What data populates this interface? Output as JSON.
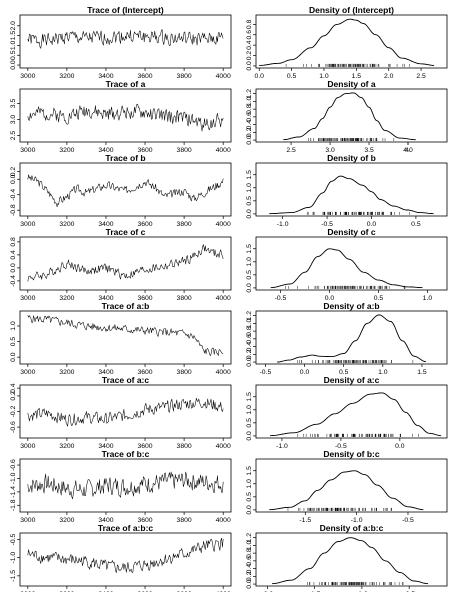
{
  "chart_data": [
    {
      "type": "line",
      "title": "Trace of (Intercept)",
      "x_ticks": [
        "3000",
        "3200",
        "3400",
        "3600",
        "3800",
        "4000"
      ],
      "y_ticks": [
        "0.0",
        "0.5",
        "1.0",
        "1.5",
        "2.0"
      ],
      "x_range": [
        3000,
        4000
      ],
      "ylim": [
        -0.15,
        2.55
      ],
      "x_values": [
        3000,
        3100,
        3200,
        3300,
        3400,
        3500,
        3600,
        3700,
        3800,
        3900,
        4000
      ],
      "y_values": [
        1.3,
        1.25,
        1.45,
        1.35,
        1.4,
        1.5,
        1.45,
        1.4,
        1.35,
        1.3,
        1.4
      ],
      "noise": 0.45,
      "seed": 1
    },
    {
      "type": "line",
      "title": "Density of (Intercept)",
      "x_ticks": [
        "0.0",
        "0.5",
        "1.0",
        "1.5",
        "2.0",
        "2.5"
      ],
      "y_ticks": [
        "0.0",
        "0.2",
        "0.4",
        "0.6",
        "0.8"
      ],
      "xlim": [
        -0.05,
        2.9
      ],
      "ylim": [
        -0.04,
        0.98
      ],
      "x_values": [
        0,
        0.3,
        0.5,
        0.8,
        1.0,
        1.2,
        1.4,
        1.5,
        1.6,
        1.8,
        2.0,
        2.2,
        2.5,
        2.7
      ],
      "y_values": [
        0.01,
        0.05,
        0.12,
        0.35,
        0.58,
        0.8,
        0.9,
        0.88,
        0.82,
        0.6,
        0.35,
        0.15,
        0.04,
        0.01
      ],
      "rug_range": [
        0.3,
        2.6
      ]
    },
    {
      "type": "line",
      "title": "Trace of a",
      "x_ticks": [
        "3000",
        "3200",
        "3400",
        "3600",
        "3800",
        "4000"
      ],
      "y_ticks": [
        "2.5",
        "3.0",
        "3.5"
      ],
      "x_range": [
        3000,
        4000
      ],
      "ylim": [
        2.3,
        3.95
      ],
      "x_values": [
        3000,
        3100,
        3200,
        3300,
        3400,
        3500,
        3600,
        3700,
        3800,
        3900,
        4000
      ],
      "y_values": [
        3.15,
        3.2,
        3.1,
        3.3,
        3.15,
        3.25,
        3.2,
        3.1,
        3.05,
        2.85,
        3.0
      ],
      "noise": 0.28,
      "seed": 2
    },
    {
      "type": "line",
      "title": "Density of a",
      "x_ticks": [
        "2.5",
        "3.0",
        "3.5",
        "4.0",
        "4."
      ],
      "y_ticks": [
        "0.0",
        "0.2",
        "0.4",
        "0.6",
        "0.8",
        "1.0",
        "1.2"
      ],
      "xlim": [
        2.05,
        4.5
      ],
      "ylim": [
        -0.05,
        1.32
      ],
      "x_values": [
        2.4,
        2.6,
        2.8,
        2.9,
        3.0,
        3.1,
        3.2,
        3.3,
        3.4,
        3.5,
        3.6,
        3.7,
        3.9,
        4.1
      ],
      "y_values": [
        0.01,
        0.08,
        0.3,
        0.55,
        0.85,
        1.1,
        1.2,
        1.22,
        1.1,
        0.85,
        0.5,
        0.25,
        0.05,
        0.01
      ],
      "rug_range": [
        2.5,
        3.9
      ]
    },
    {
      "type": "line",
      "title": "Trace of b",
      "x_ticks": [
        "3000",
        "3200",
        "3400",
        "3600",
        "3800",
        "4000"
      ],
      "y_ticks": [
        "-0.8",
        "-0.4",
        "0.0",
        "0.2"
      ],
      "x_range": [
        3000,
        4000
      ],
      "ylim": [
        -0.95,
        0.42
      ],
      "x_values": [
        3000,
        3050,
        3100,
        3150,
        3200,
        3250,
        3300,
        3400,
        3500,
        3600,
        3650,
        3700,
        3800,
        3850,
        3900,
        4000
      ],
      "y_values": [
        0.05,
        -0.05,
        -0.3,
        -0.6,
        -0.45,
        -0.25,
        -0.35,
        -0.15,
        -0.3,
        -0.05,
        -0.2,
        -0.45,
        -0.3,
        -0.5,
        -0.35,
        -0.05
      ],
      "noise": 0.14,
      "seed": 3
    },
    {
      "type": "line",
      "title": "Density of b",
      "x_ticks": [
        "-1.0",
        "-0.5",
        "0.0",
        "0.5"
      ],
      "y_ticks": [
        "0.0",
        "0.5",
        "1.0",
        "1.5"
      ],
      "xlim": [
        -1.3,
        0.85
      ],
      "ylim": [
        -0.08,
        1.95
      ],
      "x_values": [
        -1.15,
        -0.9,
        -0.7,
        -0.55,
        -0.45,
        -0.35,
        -0.25,
        -0.1,
        0.0,
        0.1,
        0.25,
        0.4,
        0.55,
        0.7
      ],
      "y_values": [
        0.01,
        0.05,
        0.25,
        0.8,
        1.25,
        1.45,
        1.35,
        1.1,
        0.85,
        0.55,
        0.3,
        0.15,
        0.05,
        0.01
      ],
      "rug_range": [
        -1.0,
        0.6
      ]
    },
    {
      "type": "line",
      "title": "Trace of c",
      "x_ticks": [
        "3000",
        "3200",
        "3400",
        "3600",
        "3800",
        "4000"
      ],
      "y_ticks": [
        "-0.4",
        "0.0",
        "0.4",
        "0.8"
      ],
      "x_range": [
        3000,
        4000
      ],
      "ylim": [
        -0.68,
        0.95
      ],
      "x_values": [
        3000,
        3100,
        3200,
        3300,
        3400,
        3500,
        3600,
        3700,
        3800,
        3850,
        3900,
        3950,
        4000
      ],
      "y_values": [
        -0.3,
        -0.2,
        0.15,
        -0.1,
        0.0,
        -0.25,
        -0.05,
        0.05,
        0.2,
        0.35,
        0.6,
        0.45,
        0.4
      ],
      "noise": 0.18,
      "seed": 4
    },
    {
      "type": "line",
      "title": "Density of c",
      "x_ticks": [
        "-0.5",
        "0.0",
        "0.5",
        "1.0"
      ],
      "y_ticks": [
        "0.0",
        "0.5",
        "1.0",
        "1.5"
      ],
      "xlim": [
        -0.75,
        1.2
      ],
      "ylim": [
        -0.08,
        1.95
      ],
      "x_values": [
        -0.6,
        -0.4,
        -0.25,
        -0.12,
        0.0,
        0.08,
        0.2,
        0.35,
        0.5,
        0.65,
        0.8,
        0.95
      ],
      "y_values": [
        0.01,
        0.15,
        0.6,
        1.2,
        1.5,
        1.45,
        1.1,
        0.6,
        0.3,
        0.12,
        0.04,
        0.01
      ],
      "rug_range": [
        -0.55,
        0.95
      ]
    },
    {
      "type": "line",
      "title": "Trace of a:b",
      "x_ticks": [
        "3000",
        "3200",
        "3400",
        "3600",
        "3800",
        "4000"
      ],
      "y_ticks": [
        "0.0",
        "0.5",
        "1.0"
      ],
      "x_range": [
        3000,
        4000
      ],
      "ylim": [
        -0.22,
        1.48
      ],
      "x_values": [
        3000,
        3100,
        3200,
        3300,
        3400,
        3500,
        3600,
        3700,
        3800,
        3850,
        3900,
        3950,
        4000
      ],
      "y_values": [
        1.25,
        1.2,
        1.1,
        1.0,
        0.95,
        0.9,
        0.85,
        0.8,
        0.75,
        0.65,
        0.2,
        0.15,
        0.2
      ],
      "noise": 0.17,
      "seed": 5
    },
    {
      "type": "line",
      "title": "Density of a:b",
      "x_ticks": [
        "-0.5",
        "0.0",
        "0.5",
        "1.0",
        "1.5"
      ],
      "y_ticks": [
        "0.0",
        "0.2",
        "0.4",
        "0.6",
        "0.8",
        "1.0",
        "1.2"
      ],
      "xlim": [
        -0.62,
        1.82
      ],
      "ylim": [
        -0.05,
        1.32
      ],
      "x_values": [
        -0.35,
        -0.2,
        -0.05,
        0.1,
        0.2,
        0.35,
        0.5,
        0.65,
        0.8,
        0.95,
        1.1,
        1.25,
        1.4,
        1.55
      ],
      "y_values": [
        0.0,
        0.05,
        0.13,
        0.18,
        0.15,
        0.14,
        0.22,
        0.55,
        1.0,
        1.22,
        1.05,
        0.55,
        0.15,
        0.01
      ],
      "rug_range": [
        -0.2,
        1.45
      ]
    },
    {
      "type": "line",
      "title": "Trace of a:c",
      "x_ticks": [
        "3000",
        "3200",
        "3400",
        "3600",
        "3800",
        "4000"
      ],
      "y_ticks": [
        "-0.6",
        "-0.2",
        "0.2",
        "0.4"
      ],
      "x_range": [
        3000,
        4000
      ],
      "ylim": [
        -0.88,
        0.48
      ],
      "x_values": [
        3000,
        3100,
        3200,
        3300,
        3400,
        3500,
        3600,
        3700,
        3800,
        3900,
        4000
      ],
      "y_values": [
        -0.3,
        -0.25,
        -0.4,
        -0.35,
        -0.4,
        -0.3,
        -0.15,
        -0.1,
        0.0,
        0.05,
        -0.1
      ],
      "noise": 0.2,
      "seed": 6
    },
    {
      "type": "line",
      "title": "Density of a:c",
      "x_ticks": [
        "-1.0",
        "-0.5",
        "0.0"
      ],
      "y_ticks": [
        "0.0",
        "0.5",
        "1.0",
        "1.5"
      ],
      "xlim": [
        -1.22,
        0.4
      ],
      "ylim": [
        -0.08,
        1.95
      ],
      "x_values": [
        -1.1,
        -0.9,
        -0.7,
        -0.55,
        -0.4,
        -0.25,
        -0.15,
        -0.05,
        0.05,
        0.15,
        0.25,
        0.35
      ],
      "y_values": [
        0.01,
        0.12,
        0.45,
        0.85,
        1.25,
        1.6,
        1.65,
        1.4,
        0.9,
        0.4,
        0.1,
        0.01
      ],
      "rug_range": [
        -0.95,
        0.3
      ]
    },
    {
      "type": "line",
      "title": "Trace of b:c",
      "x_ticks": [
        "3000",
        "3200",
        "3400",
        "3600",
        "3800",
        "4000"
      ],
      "y_ticks": [
        "-1.8",
        "-1.4",
        "-1.0",
        "-0.6"
      ],
      "x_range": [
        3000,
        4000
      ],
      "ylim": [
        -2.0,
        -0.42
      ],
      "x_values": [
        3000,
        3100,
        3200,
        3300,
        3400,
        3500,
        3600,
        3700,
        3800,
        3900,
        4000
      ],
      "y_values": [
        -1.2,
        -1.15,
        -1.3,
        -1.35,
        -1.2,
        -1.25,
        -1.15,
        -1.1,
        -1.05,
        -1.1,
        -1.15
      ],
      "noise": 0.35,
      "seed": 7
    },
    {
      "type": "line",
      "title": "Density of b:c",
      "x_ticks": [
        "-1.5",
        "-1.0",
        "-0.5"
      ],
      "y_ticks": [
        "0.0",
        "0.5",
        "1.0",
        "1.5"
      ],
      "xlim": [
        -1.98,
        -0.12
      ],
      "ylim": [
        -0.08,
        1.95
      ],
      "x_values": [
        -1.85,
        -1.65,
        -1.5,
        -1.38,
        -1.25,
        -1.12,
        -1.02,
        -0.92,
        -0.8,
        -0.65,
        -0.5,
        -0.35
      ],
      "y_values": [
        0.01,
        0.1,
        0.35,
        0.75,
        1.15,
        1.45,
        1.5,
        1.35,
        0.95,
        0.45,
        0.12,
        0.01
      ],
      "rug_range": [
        -1.85,
        -0.5
      ]
    },
    {
      "type": "line",
      "title": "Trace of a:b:c",
      "x_ticks": [
        "3000",
        "3200",
        "3400",
        "3600",
        "3800",
        "4000"
      ],
      "y_ticks": [
        "-1.5",
        "-1.0",
        "-0.5"
      ],
      "x_range": [
        3000,
        4000
      ],
      "ylim": [
        -1.78,
        -0.32
      ],
      "x_values": [
        3000,
        3100,
        3200,
        3300,
        3400,
        3500,
        3600,
        3700,
        3800,
        3900,
        4000
      ],
      "y_values": [
        -0.9,
        -1.0,
        -1.05,
        -1.1,
        -1.25,
        -1.3,
        -1.2,
        -1.05,
        -0.9,
        -0.7,
        -0.6
      ],
      "noise": 0.22,
      "seed": 8
    },
    {
      "type": "line",
      "title": "Density of a:b:c",
      "x_ticks": [
        "-2.0",
        "-1.5",
        "-1.0",
        "-0.5"
      ],
      "y_ticks": [
        "0.0",
        "0.2",
        "0.4",
        "0.6",
        "0.8",
        "1.0",
        "1.2"
      ],
      "xlim": [
        -2.12,
        -0.1
      ],
      "ylim": [
        -0.05,
        1.32
      ],
      "x_values": [
        -1.95,
        -1.75,
        -1.55,
        -1.4,
        -1.25,
        -1.12,
        -1.0,
        -0.9,
        -0.75,
        -0.6,
        -0.45,
        -0.3
      ],
      "y_values": [
        0.01,
        0.1,
        0.4,
        0.8,
        1.1,
        1.2,
        1.12,
        0.95,
        0.6,
        0.3,
        0.08,
        0.01
      ],
      "rug_range": [
        -1.8,
        -0.35
      ]
    }
  ]
}
